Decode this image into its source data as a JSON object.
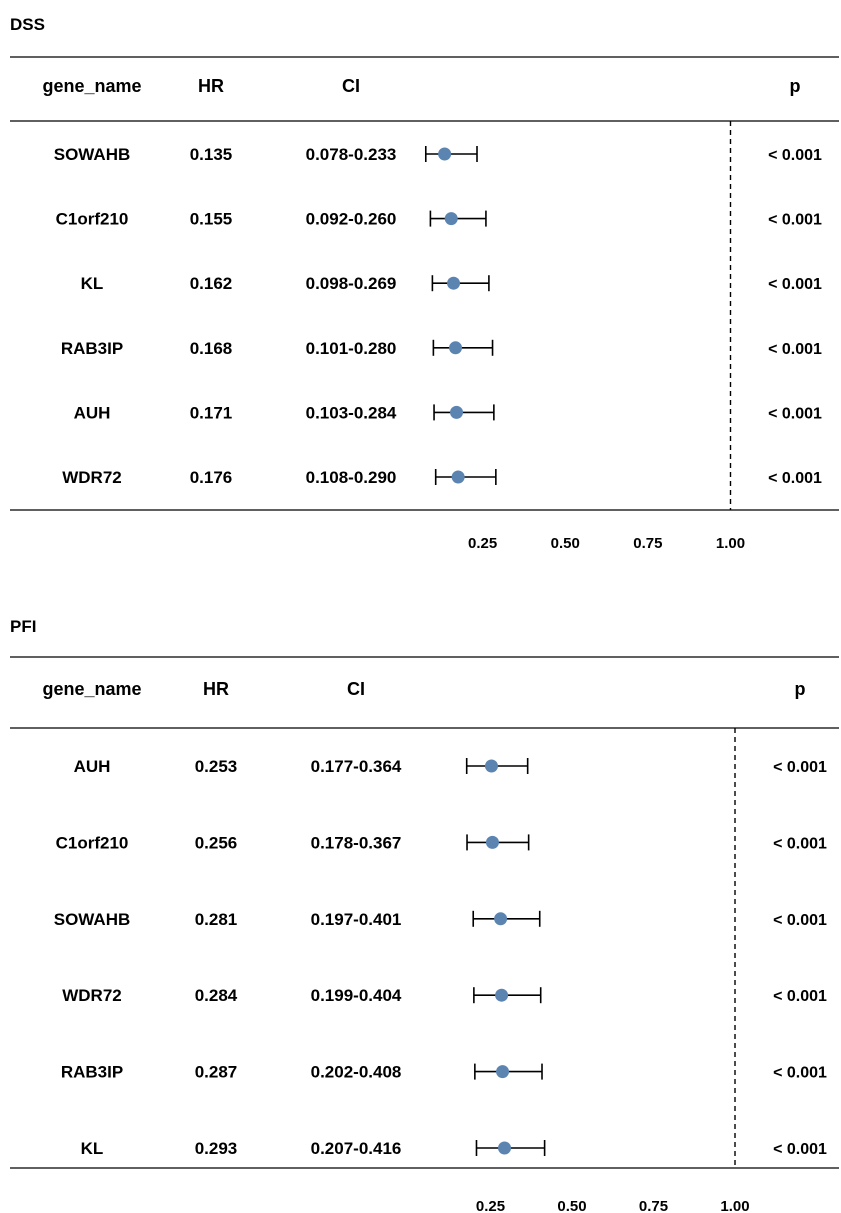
{
  "chart_data": [
    {
      "type": "forest",
      "title": "DSS",
      "columns": [
        "gene_name",
        "HR",
        "CI",
        "p"
      ],
      "xticks": [
        0.25,
        0.5,
        0.75,
        1.0
      ],
      "xtick_labels": [
        "0.25",
        "0.50",
        "0.75",
        "1.00"
      ],
      "reference_line": 1.0,
      "rows": [
        {
          "gene_name": "SOWAHB",
          "hr": 0.135,
          "lower": 0.078,
          "upper": 0.233,
          "hr_label": "0.135",
          "ci_label": "0.078-0.233",
          "p_label": "< 0.001"
        },
        {
          "gene_name": "C1orf210",
          "hr": 0.155,
          "lower": 0.092,
          "upper": 0.26,
          "hr_label": "0.155",
          "ci_label": "0.092-0.260",
          "p_label": "< 0.001"
        },
        {
          "gene_name": "KL",
          "hr": 0.162,
          "lower": 0.098,
          "upper": 0.269,
          "hr_label": "0.162",
          "ci_label": "0.098-0.269",
          "p_label": "< 0.001"
        },
        {
          "gene_name": "RAB3IP",
          "hr": 0.168,
          "lower": 0.101,
          "upper": 0.28,
          "hr_label": "0.168",
          "ci_label": "0.101-0.280",
          "p_label": "< 0.001"
        },
        {
          "gene_name": "AUH",
          "hr": 0.171,
          "lower": 0.103,
          "upper": 0.284,
          "hr_label": "0.171",
          "ci_label": "0.103-0.284",
          "p_label": "< 0.001"
        },
        {
          "gene_name": "WDR72",
          "hr": 0.176,
          "lower": 0.108,
          "upper": 0.29,
          "hr_label": "0.176",
          "ci_label": "0.108-0.290",
          "p_label": "< 0.001"
        }
      ]
    },
    {
      "type": "forest",
      "title": "PFI",
      "columns": [
        "gene_name",
        "HR",
        "CI",
        "p"
      ],
      "xticks": [
        0.25,
        0.5,
        0.75,
        1.0
      ],
      "xtick_labels": [
        "0.25",
        "0.50",
        "0.75",
        "1.00"
      ],
      "reference_line": 1.0,
      "rows": [
        {
          "gene_name": "AUH",
          "hr": 0.253,
          "lower": 0.177,
          "upper": 0.364,
          "hr_label": "0.253",
          "ci_label": "0.177-0.364",
          "p_label": "< 0.001"
        },
        {
          "gene_name": "C1orf210",
          "hr": 0.256,
          "lower": 0.178,
          "upper": 0.367,
          "hr_label": "0.256",
          "ci_label": "0.178-0.367",
          "p_label": "< 0.001"
        },
        {
          "gene_name": "SOWAHB",
          "hr": 0.281,
          "lower": 0.197,
          "upper": 0.401,
          "hr_label": "0.281",
          "ci_label": "0.197-0.401",
          "p_label": "< 0.001"
        },
        {
          "gene_name": "WDR72",
          "hr": 0.284,
          "lower": 0.199,
          "upper": 0.404,
          "hr_label": "0.284",
          "ci_label": "0.199-0.404",
          "p_label": "< 0.001"
        },
        {
          "gene_name": "RAB3IP",
          "hr": 0.287,
          "lower": 0.202,
          "upper": 0.408,
          "hr_label": "0.287",
          "ci_label": "0.202-0.408",
          "p_label": "< 0.001"
        },
        {
          "gene_name": "KL",
          "hr": 0.293,
          "lower": 0.207,
          "upper": 0.416,
          "hr_label": "0.293",
          "ci_label": "0.207-0.416",
          "p_label": "< 0.001"
        }
      ]
    }
  ],
  "colors": {
    "point": "#5b84b1",
    "line": "#000000",
    "text": "#000000"
  }
}
